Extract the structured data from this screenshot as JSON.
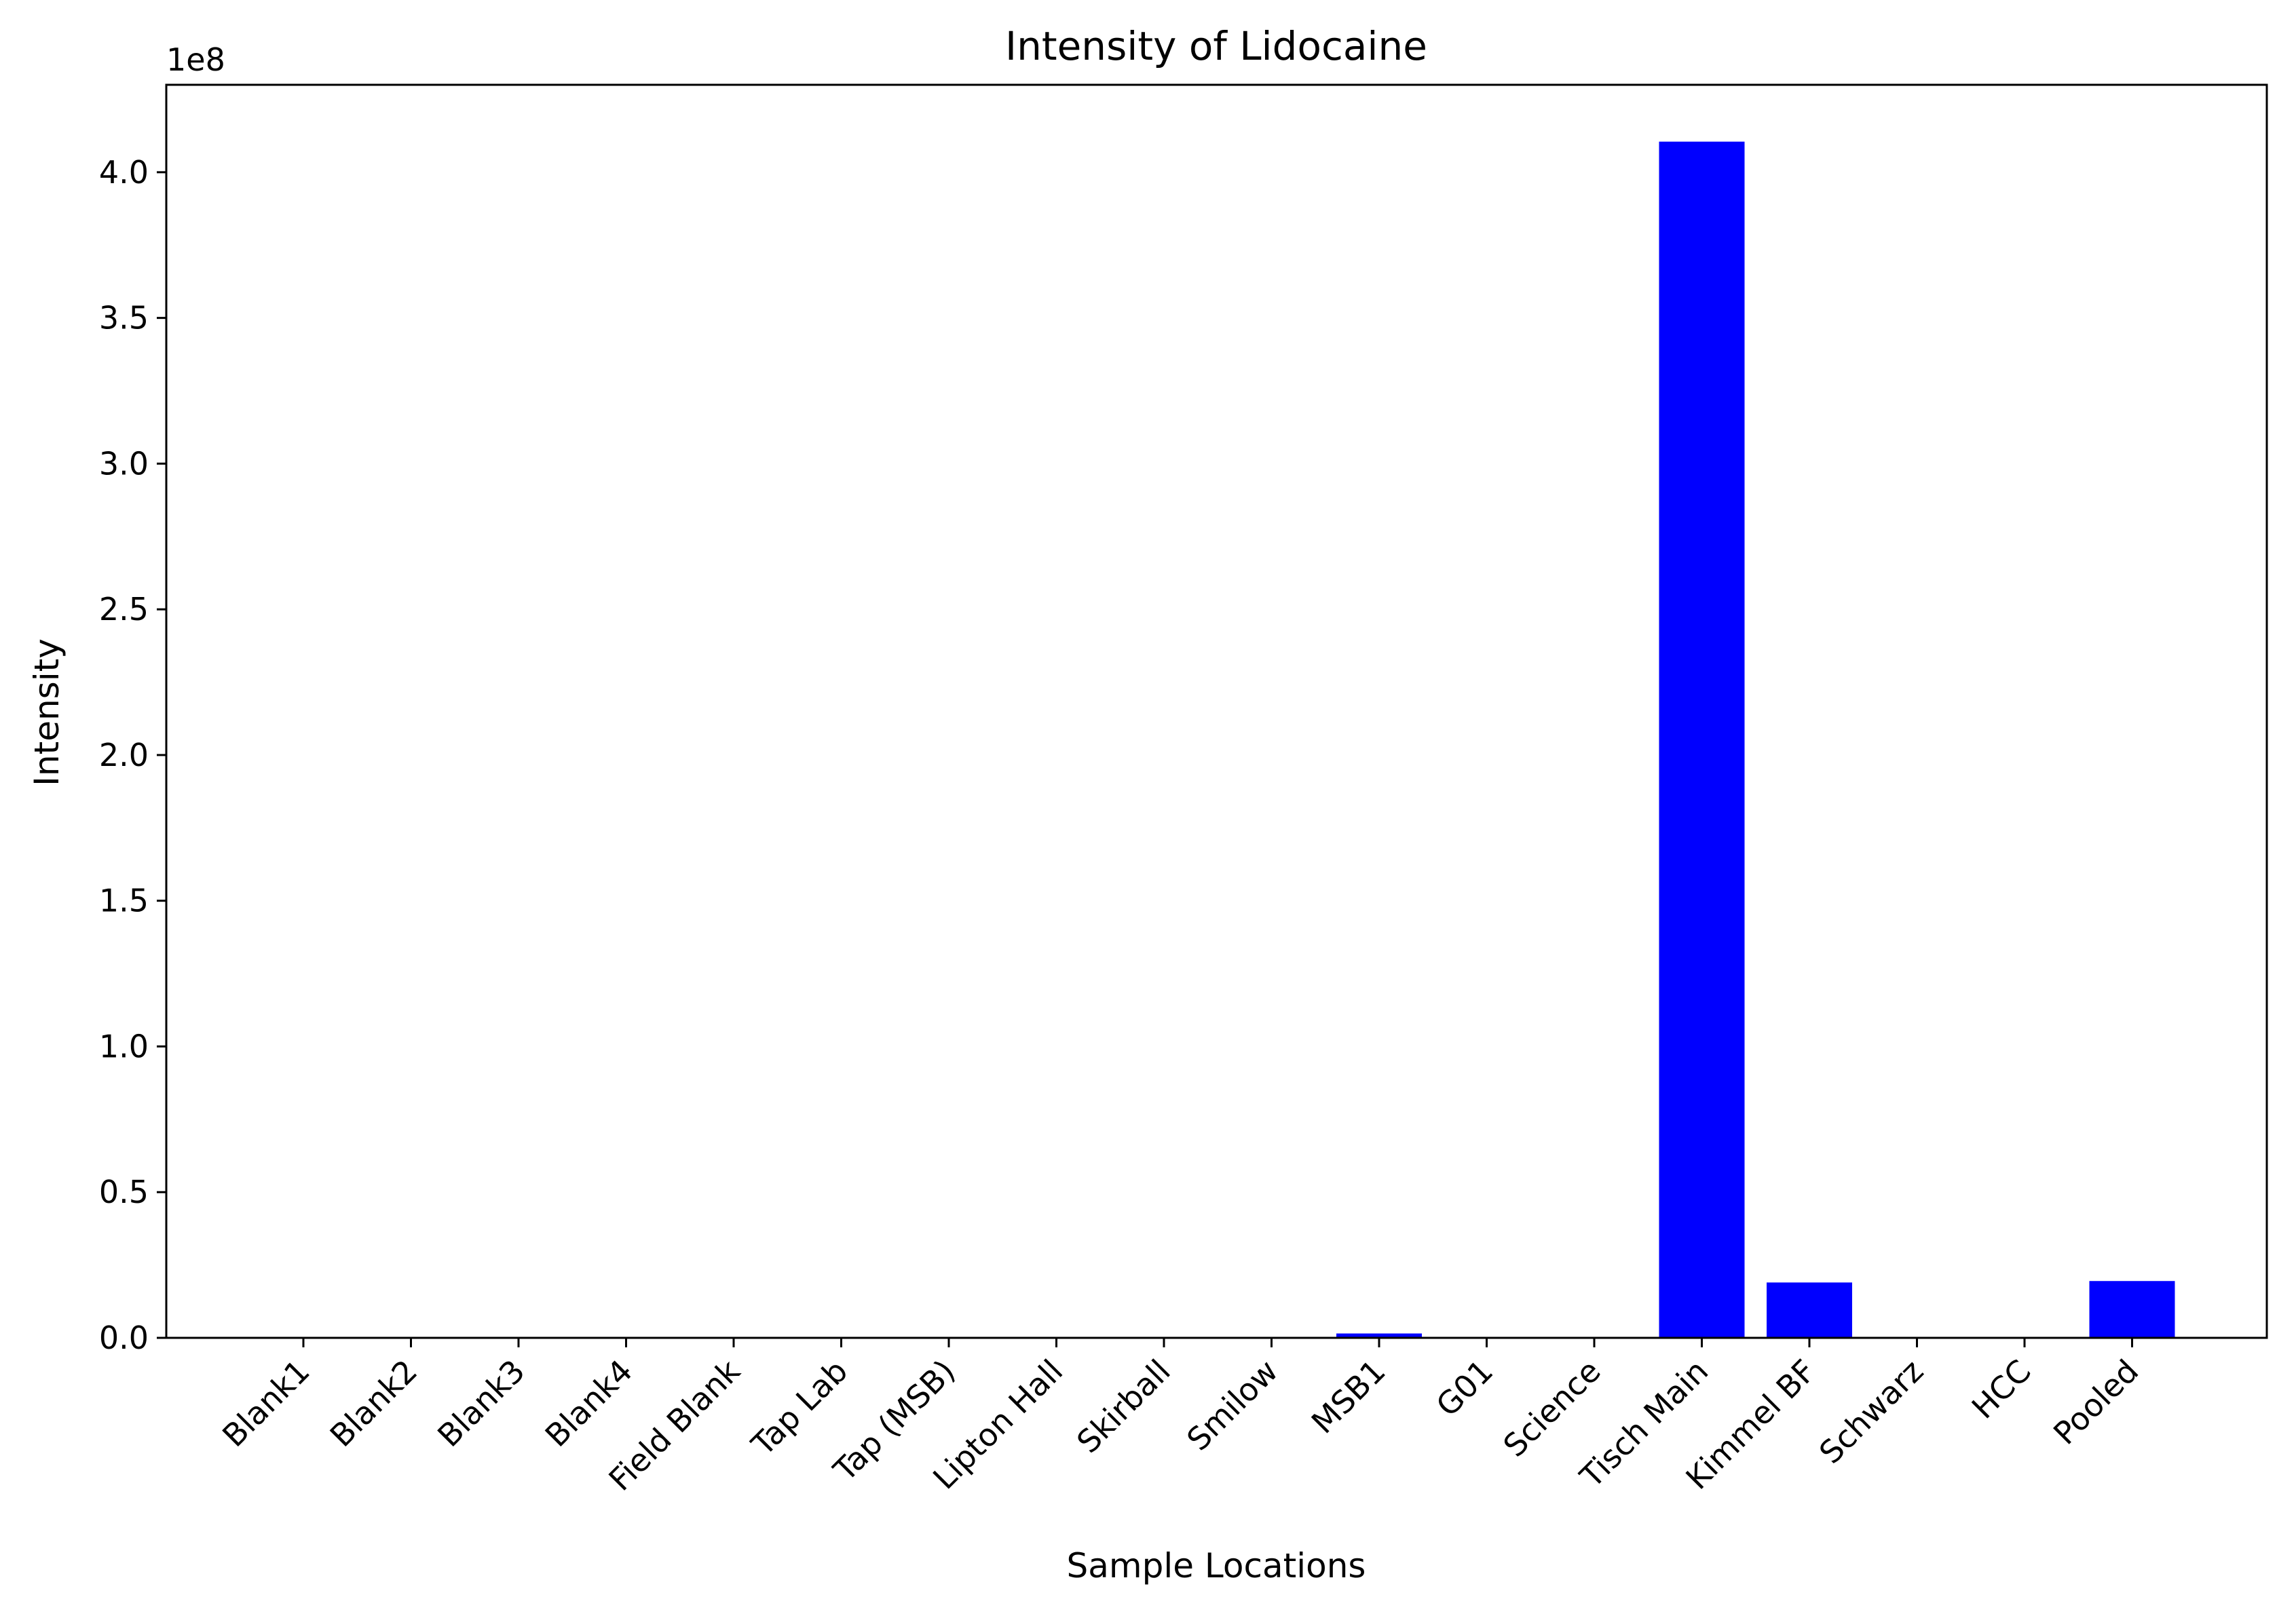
{
  "chart_data": {
    "type": "bar",
    "title": "Intensity of Lidocaine",
    "xlabel": "Sample Locations",
    "ylabel": "Intensity",
    "y_offset_label": "1e8",
    "y_scale_factor": 100000000,
    "ylim": [
      0,
      430000000
    ],
    "yticks": [
      0,
      50000000,
      100000000,
      150000000,
      200000000,
      250000000,
      300000000,
      350000000,
      400000000
    ],
    "ytick_labels": [
      "0.0",
      "0.5",
      "1.0",
      "1.5",
      "2.0",
      "2.5",
      "3.0",
      "3.5",
      "4.0"
    ],
    "grid": false,
    "bar_color": "#0000ff",
    "categories": [
      "Blank1",
      "Blank2",
      "Blank3",
      "Blank4",
      "Field Blank",
      "Tap Lab",
      "Tap (MSB)",
      "Lipton Hall",
      "Skirball",
      "Smilow",
      "MSB1",
      "G01",
      "Science",
      "Tisch Main",
      "Kimmel BF",
      "Schwarz",
      "HCC",
      "Pooled"
    ],
    "values": [
      0,
      0,
      0,
      0,
      0,
      0,
      0,
      0,
      0,
      0,
      1500000,
      0,
      0,
      410500000,
      19000000,
      0,
      0,
      19500000
    ]
  }
}
